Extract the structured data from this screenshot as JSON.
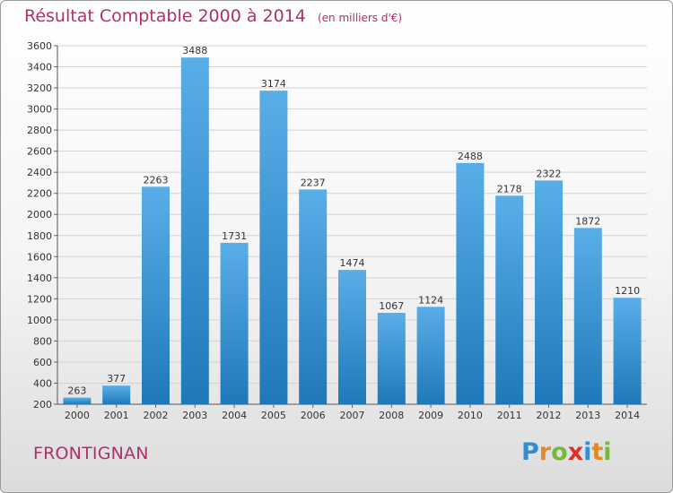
{
  "header": {
    "title": "Résultat Comptable 2000 à 2014",
    "subtitle": "(en milliers d'€)"
  },
  "footer": {
    "city": "FRONTIGNAN",
    "logo": "Proxiti"
  },
  "colors": {
    "bar_light": "#5aaee8",
    "bar_dark": "#1f78b8",
    "title": "#b0306a"
  },
  "chart_data": {
    "type": "bar",
    "categories": [
      "2000",
      "2001",
      "2002",
      "2003",
      "2004",
      "2005",
      "2006",
      "2007",
      "2008",
      "2009",
      "2010",
      "2011",
      "2012",
      "2013",
      "2014"
    ],
    "values": [
      263,
      377,
      2263,
      3488,
      1731,
      3174,
      2237,
      1474,
      1067,
      1124,
      2488,
      2178,
      2322,
      1872,
      1210
    ],
    "ylim": [
      200,
      3600
    ],
    "yticks": [
      200,
      400,
      600,
      800,
      1000,
      1200,
      1400,
      1600,
      1800,
      2000,
      2200,
      2400,
      2600,
      2800,
      3000,
      3200,
      3400,
      3600
    ],
    "grid": true,
    "data_labels": true
  }
}
